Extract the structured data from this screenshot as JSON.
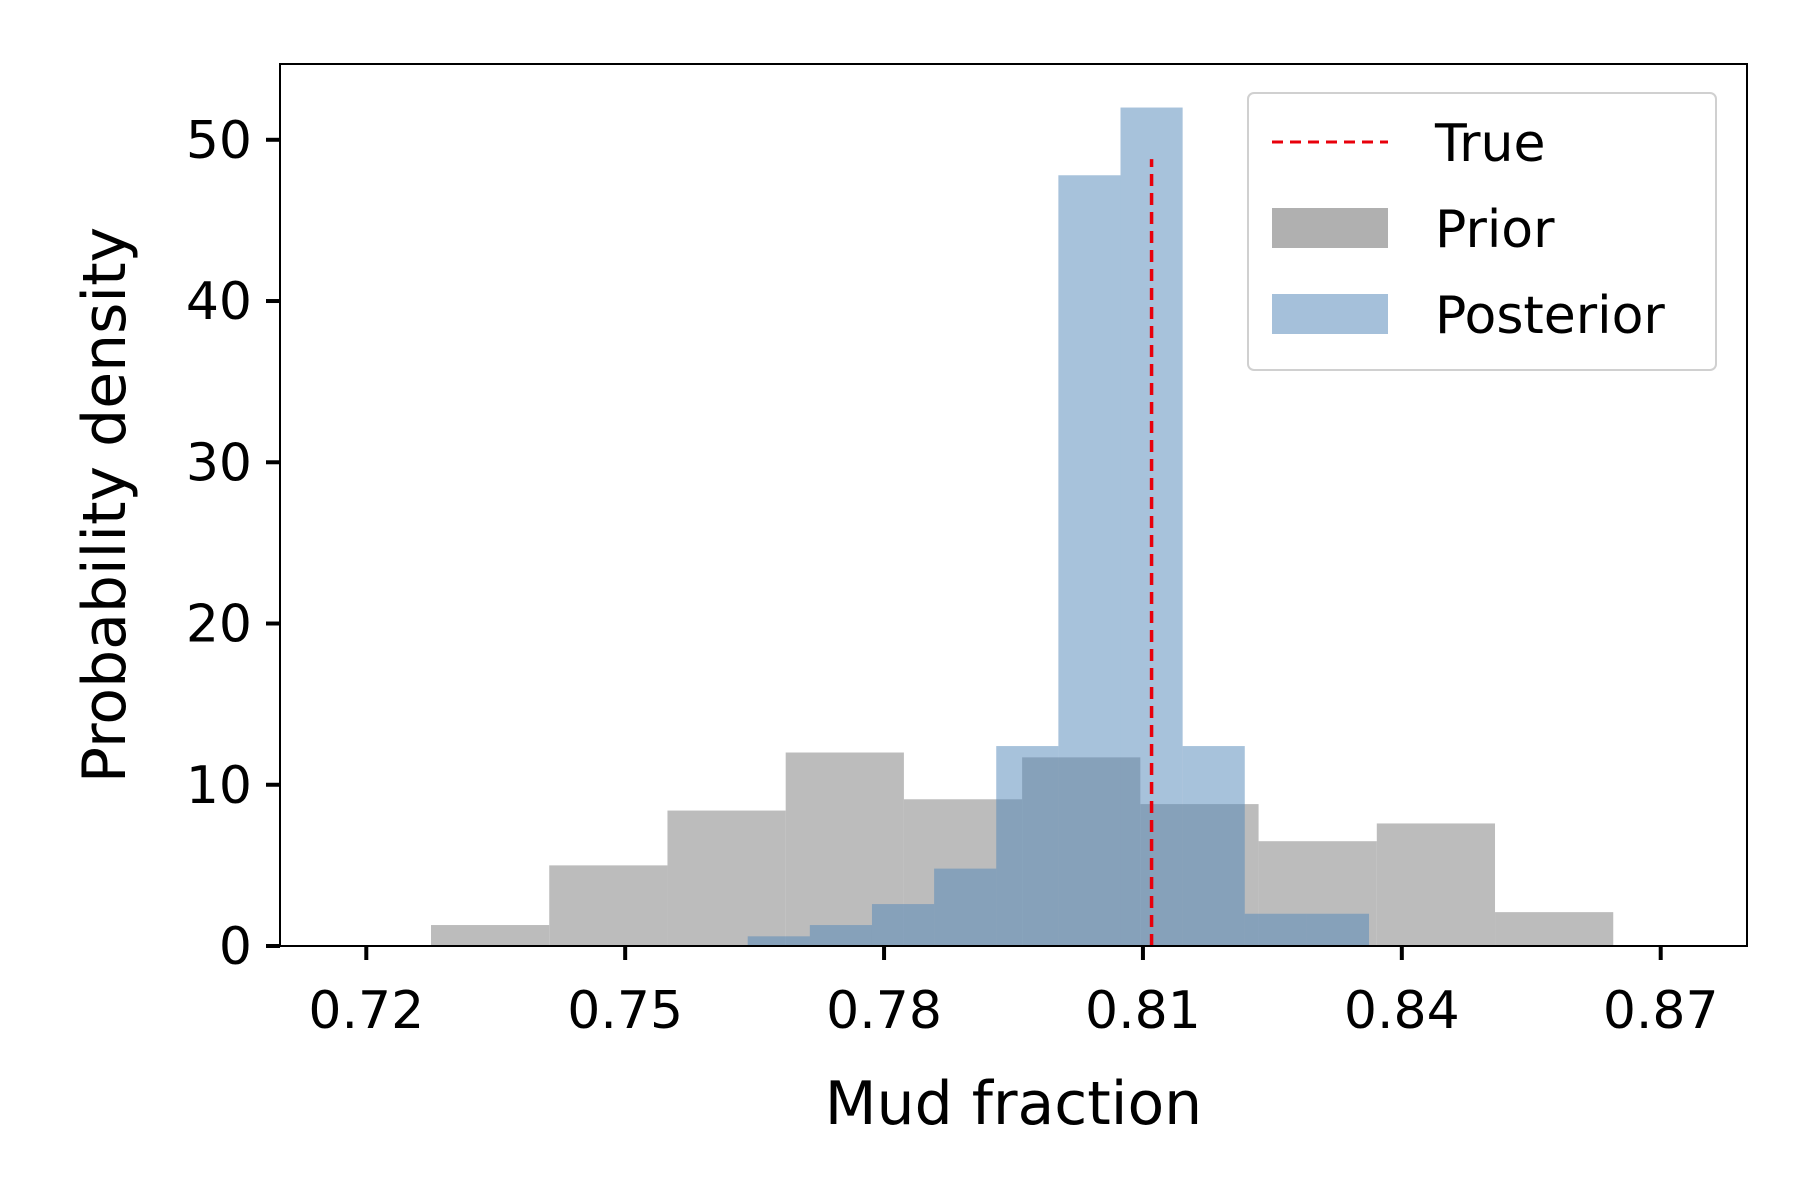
{
  "chart_data": {
    "type": "histogram",
    "title": "",
    "xlabel": "Mud fraction",
    "ylabel": "Probability density",
    "xlim": [
      0.71,
      0.88
    ],
    "ylim": [
      0,
      54.7
    ],
    "xticks": [
      0.72,
      0.75,
      0.78,
      0.81,
      0.84,
      0.87
    ],
    "xtick_labels": [
      "0.72",
      "0.75",
      "0.78",
      "0.81",
      "0.84",
      "0.87"
    ],
    "yticks": [
      0,
      10,
      20,
      30,
      40,
      50
    ],
    "ytick_labels": [
      "0",
      "10",
      "20",
      "30",
      "40",
      "50"
    ],
    "grid": false,
    "legend_position": "top-right",
    "colors": {
      "true_line": "#e8000b",
      "prior": "#b0b0b0",
      "posterior": "#8db0d2",
      "overlap": "#85a3bb"
    },
    "series": [
      {
        "name": "Prior",
        "kind": "bars",
        "bins": [
          {
            "x0": 0.7275,
            "x1": 0.7412,
            "value": 1.3
          },
          {
            "x0": 0.7412,
            "x1": 0.7549,
            "value": 5.0
          },
          {
            "x0": 0.7549,
            "x1": 0.7686,
            "value": 8.4
          },
          {
            "x0": 0.7686,
            "x1": 0.7823,
            "value": 12.0
          },
          {
            "x0": 0.7823,
            "x1": 0.796,
            "value": 9.1
          },
          {
            "x0": 0.796,
            "x1": 0.8097,
            "value": 11.7
          },
          {
            "x0": 0.8097,
            "x1": 0.8234,
            "value": 8.8
          },
          {
            "x0": 0.8234,
            "x1": 0.8371,
            "value": 6.5
          },
          {
            "x0": 0.8371,
            "x1": 0.8508,
            "value": 7.6
          },
          {
            "x0": 0.8508,
            "x1": 0.8645,
            "value": 2.1
          }
        ]
      },
      {
        "name": "Posterior",
        "kind": "bars",
        "bins": [
          {
            "x0": 0.7642,
            "x1": 0.7714,
            "value": 0.6
          },
          {
            "x0": 0.7714,
            "x1": 0.7786,
            "value": 1.3
          },
          {
            "x0": 0.7786,
            "x1": 0.7858,
            "value": 2.6
          },
          {
            "x0": 0.7858,
            "x1": 0.793,
            "value": 4.8
          },
          {
            "x0": 0.793,
            "x1": 0.8002,
            "value": 12.4
          },
          {
            "x0": 0.8002,
            "x1": 0.8074,
            "value": 47.8
          },
          {
            "x0": 0.8074,
            "x1": 0.8146,
            "value": 52.0
          },
          {
            "x0": 0.8146,
            "x1": 0.8218,
            "value": 12.4
          },
          {
            "x0": 0.8218,
            "x1": 0.829,
            "value": 2.0
          },
          {
            "x0": 0.829,
            "x1": 0.8362,
            "value": 2.0
          }
        ]
      },
      {
        "name": "True",
        "kind": "vline",
        "x": 0.811,
        "y_top": 48.8,
        "style": "dashed"
      }
    ]
  }
}
